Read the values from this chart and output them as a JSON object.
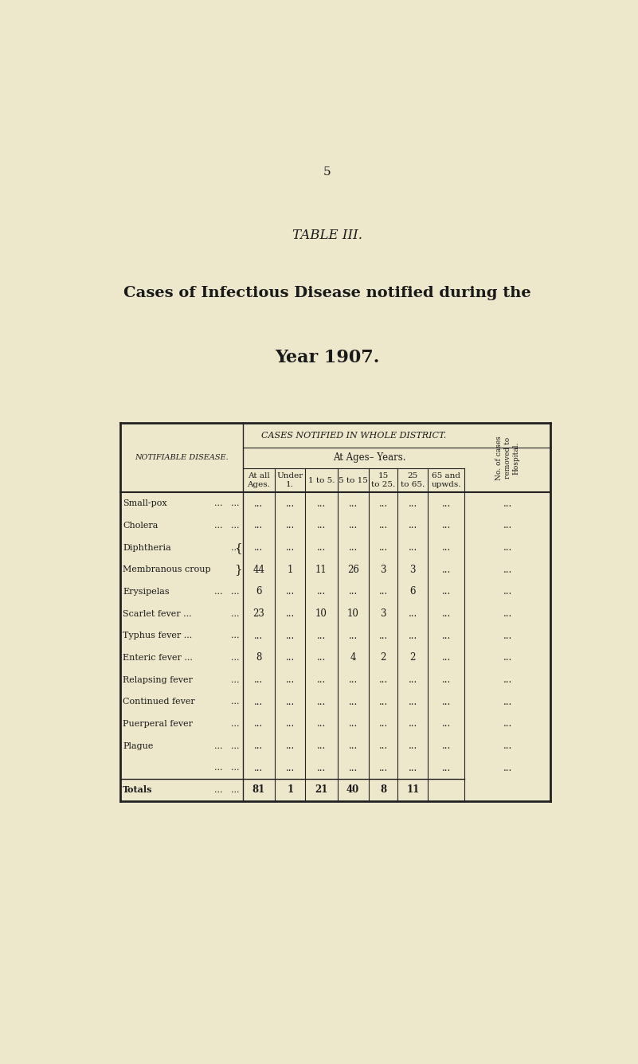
{
  "page_number": "5",
  "table_title": "TABLE III.",
  "subtitle_line1": "Cases of Infectious Disease notified during the",
  "subtitle_line2": "Year 1907.",
  "bg_color": "#ede8cc",
  "text_color": "#1a1a1a",
  "header_span": "CASES NOTIFIED IN WHOLE DISTRICT.",
  "ages_span": "At Ages– Years.",
  "notifiable_label": "NOTIFIABLE DISEASE.",
  "col_headers": [
    "At all\nAges.",
    "Under\n1.",
    "1 to 5.",
    "5 to 15",
    "15\nto 25.",
    "25\nto 65.",
    "65 and\nupwds."
  ],
  "rotated_header": "No. of cases\nremoved to\nHospital.",
  "disease_rows": [
    {
      "name": "Small-pox",
      "dots": "...   ...",
      "bracket": ""
    },
    {
      "name": "Cholera",
      "dots": "...   ...",
      "bracket": ""
    },
    {
      "name": "Diphtheria",
      "dots": "...",
      "bracket": "{"
    },
    {
      "name": "Membranous croup",
      "dots": "",
      "bracket": "}"
    },
    {
      "name": "Erysipelas",
      "dots": "...   ...",
      "bracket": ""
    },
    {
      "name": "Scarlet fever ...",
      "dots": "...",
      "bracket": ""
    },
    {
      "name": "Typhus fever ...",
      "dots": "...",
      "bracket": ""
    },
    {
      "name": "Enteric fever ...",
      "dots": "...",
      "bracket": ""
    },
    {
      "name": "Relapsing fever",
      "dots": "...",
      "bracket": ""
    },
    {
      "name": "Continued fever",
      "dots": "...",
      "bracket": ""
    },
    {
      "name": "Puerperal fever",
      "dots": "...",
      "bracket": ""
    },
    {
      "name": "Plague",
      "dots": "...   ...",
      "bracket": ""
    },
    {
      "name": "",
      "dots": "...   ...",
      "bracket": ""
    },
    {
      "name": "Totals",
      "dots": "...   ...",
      "bracket": "",
      "is_total": true
    }
  ],
  "table_data": [
    [
      "...",
      "...",
      "...",
      "...",
      "...",
      "...",
      "...",
      "..."
    ],
    [
      "...",
      "...",
      "...",
      "...",
      "...",
      "...",
      "...",
      "..."
    ],
    [
      "...",
      "...",
      "...",
      "...",
      "...",
      "...",
      "...",
      "..."
    ],
    [
      "44",
      "1",
      "11",
      "26",
      "3",
      "3",
      "...",
      "..."
    ],
    [
      "6",
      "...",
      "...",
      "...",
      "...",
      "6",
      "...",
      "..."
    ],
    [
      "23",
      "...",
      "10",
      "10",
      "3",
      "...",
      "...",
      "..."
    ],
    [
      "...",
      "...",
      "...",
      "...",
      "...",
      "...",
      "...",
      "..."
    ],
    [
      "8",
      "...",
      "...",
      "4",
      "2",
      "2",
      "...",
      "..."
    ],
    [
      "...",
      "...",
      "...",
      "...",
      "...",
      "...",
      "...",
      "..."
    ],
    [
      "...",
      "...",
      "...",
      "...",
      "...",
      "...",
      "...",
      "..."
    ],
    [
      "...",
      "...",
      "...",
      "...",
      "...",
      "...",
      "...",
      "..."
    ],
    [
      "...",
      "...",
      "...",
      "...",
      "...",
      "...",
      "...",
      "..."
    ],
    [
      "...",
      "...",
      "...",
      "...",
      "...",
      "...",
      "...",
      "..."
    ],
    [
      "81",
      "1",
      "21",
      "40",
      "8",
      "11",
      "",
      ""
    ]
  ]
}
